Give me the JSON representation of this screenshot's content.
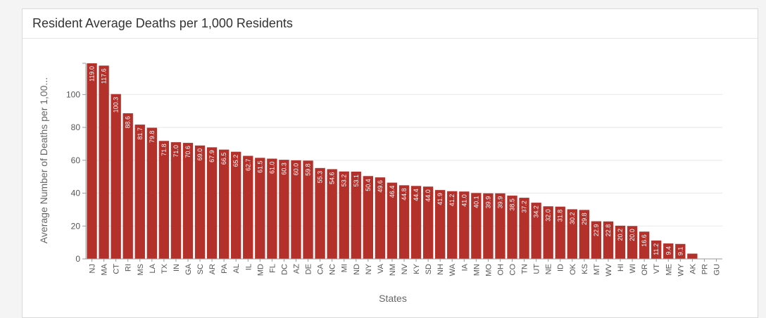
{
  "panel": {
    "title": "Resident Average Deaths per 1,000 Residents"
  },
  "chart_data": {
    "type": "bar",
    "title": "Resident Average Deaths per 1,000 Residents",
    "xlabel": "States",
    "ylabel": "Average Number of Deaths per 1,00...",
    "ylim": [
      0,
      119
    ],
    "yticks": [
      0,
      20,
      40,
      60,
      80,
      100
    ],
    "grid": true,
    "bar_color": "#b3302b",
    "categories": [
      "NJ",
      "MA",
      "CT",
      "RI",
      "MS",
      "LA",
      "TX",
      "IN",
      "GA",
      "SC",
      "AR",
      "PA",
      "AL",
      "IL",
      "MD",
      "FL",
      "DC",
      "AZ",
      "DE",
      "CA",
      "NC",
      "MI",
      "ND",
      "NY",
      "VA",
      "NM",
      "NV",
      "KY",
      "SD",
      "NH",
      "WA",
      "IA",
      "MN",
      "MO",
      "OH",
      "CO",
      "TN",
      "UT",
      "NE",
      "ID",
      "OK",
      "KS",
      "MT",
      "WV",
      "HI",
      "WI",
      "OR",
      "VT",
      "ME",
      "WY",
      "AK",
      "PR",
      "GU"
    ],
    "values": [
      119.0,
      117.6,
      100.3,
      88.6,
      81.7,
      79.8,
      71.8,
      71.0,
      70.6,
      69.0,
      67.9,
      66.5,
      65.2,
      62.7,
      61.5,
      61.0,
      60.3,
      60.0,
      59.8,
      55.3,
      54.6,
      53.2,
      53.1,
      50.4,
      49.6,
      46.4,
      44.8,
      44.4,
      44.0,
      41.9,
      41.2,
      41.0,
      40.1,
      39.9,
      39.9,
      38.5,
      37.2,
      34.2,
      32.0,
      31.8,
      30.2,
      29.8,
      22.9,
      22.8,
      20.2,
      20.0,
      16.6,
      11.2,
      9.4,
      9.1,
      3.2,
      0,
      0
    ],
    "data_labels": [
      "119.0",
      "117.6",
      "100.3",
      "88.6",
      "81.7",
      "79.8",
      "71.8",
      "71.0",
      "70.6",
      "69.0",
      "67.9",
      "66.5",
      "65.2",
      "62.7",
      "61.5",
      "61.0",
      "60.3",
      "60.0",
      "59.8",
      "55.3",
      "54.6",
      "53.2",
      "53.1",
      "50.4",
      "49.6",
      "46.4",
      "44.8",
      "44.4",
      "44.0",
      "41.9",
      "41.2",
      "41.0",
      "40.1",
      "39.9",
      "39.9",
      "38.5",
      "37.2",
      "34.2",
      "32.0",
      "31.8",
      "30.2",
      "29.8",
      "22.9",
      "22.8",
      "20.2",
      "20.0",
      "16.6",
      "11.2",
      "9.4",
      "9.1",
      "",
      "",
      ""
    ]
  }
}
